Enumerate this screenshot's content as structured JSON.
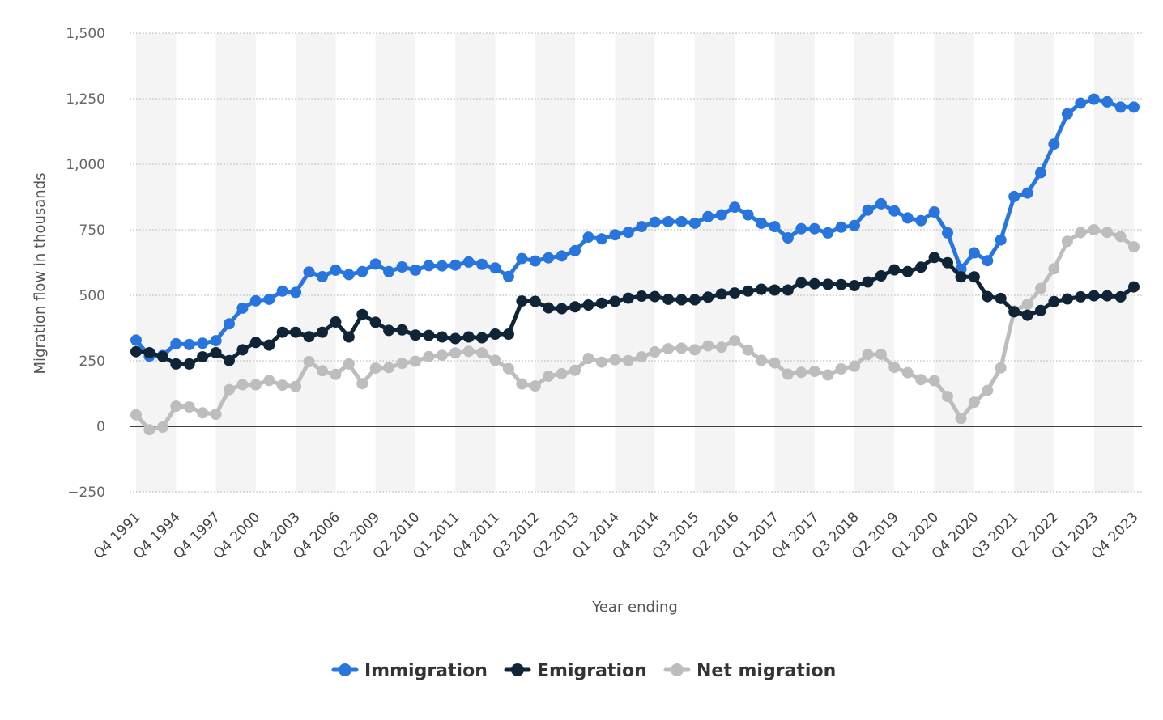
{
  "chart_data": {
    "type": "line",
    "xlabel": "Year ending",
    "ylabel": "Migration flow in thousands",
    "ylim": [
      -250,
      1500
    ],
    "yticks": [
      -250,
      0,
      250,
      500,
      750,
      1000,
      1250,
      1500
    ],
    "ytick_labels": [
      "−250",
      "0",
      "250",
      "500",
      "750",
      "1,000",
      "1,250",
      "1,500"
    ],
    "grid": true,
    "legend_position": "bottom-center",
    "x_tick_labels": [
      "Q4 1991",
      "Q4 1994",
      "Q4 1997",
      "Q4 2000",
      "Q4 2003",
      "Q4 2006",
      "Q2 2009",
      "Q2 2010",
      "Q1 2011",
      "Q4 2011",
      "Q3 2012",
      "Q2 2013",
      "Q1 2014",
      "Q4 2014",
      "Q3 2015",
      "Q2 2016",
      "Q1 2017",
      "Q4 2017",
      "Q3 2018",
      "Q2 2019",
      "Q1 2020",
      "Q4 2020",
      "Q3 2021",
      "Q2 2022",
      "Q1 2023",
      "Q4 2023"
    ],
    "series": [
      {
        "name": "Immigration",
        "color": "#2876dd",
        "values": [
          329,
          268,
          270,
          315,
          312,
          317,
          327,
          391,
          451,
          479,
          485,
          516,
          511,
          589,
          571,
          596,
          579,
          590,
          619,
          590,
          608,
          596,
          613,
          612,
          615,
          627,
          618,
          604,
          572,
          640,
          631,
          643,
          650,
          670,
          722,
          715,
          731,
          740,
          762,
          779,
          781,
          781,
          775,
          800,
          807,
          836,
          807,
          775,
          762,
          719,
          754,
          754,
          738,
          760,
          766,
          825,
          849,
          822,
          795,
          785,
          818,
          738,
          600,
          662,
          632,
          711,
          877,
          890,
          968,
          1077,
          1192,
          1233,
          1248,
          1238,
          1218,
          1218
        ]
      },
      {
        "name": "Emigration",
        "color": "#0f2537",
        "values": [
          285,
          281,
          266,
          238,
          238,
          265,
          281,
          251,
          292,
          320,
          310,
          359,
          359,
          342,
          359,
          398,
          341,
          427,
          397,
          366,
          368,
          348,
          347,
          341,
          335,
          341,
          338,
          352,
          352,
          478,
          477,
          452,
          449,
          456,
          463,
          470,
          477,
          489,
          497,
          495,
          485,
          483,
          483,
          493,
          505,
          509,
          516,
          523,
          520,
          520,
          548,
          544,
          542,
          541,
          537,
          551,
          574,
          597,
          590,
          607,
          644,
          624,
          570,
          570,
          495,
          488,
          437,
          424,
          442,
          476,
          486,
          494,
          498,
          498,
          494,
          532
        ]
      },
      {
        "name": "Net migration",
        "color": "#bdbdbd",
        "values": [
          44,
          -13,
          -3,
          77,
          74,
          52,
          46,
          140,
          159,
          159,
          175,
          157,
          152,
          247,
          212,
          198,
          238,
          163,
          222,
          224,
          240,
          248,
          266,
          271,
          280,
          286,
          280,
          252,
          220,
          162,
          154,
          191,
          201,
          214,
          259,
          245,
          254,
          251,
          265,
          284,
          296,
          298,
          292,
          307,
          302,
          327,
          291,
          252,
          242,
          199,
          206,
          210,
          196,
          219,
          229,
          274,
          275,
          225,
          205,
          178,
          174,
          114,
          30,
          92,
          137,
          223,
          440,
          466,
          526,
          601,
          706,
          739,
          750,
          740,
          724,
          685
        ]
      }
    ]
  }
}
